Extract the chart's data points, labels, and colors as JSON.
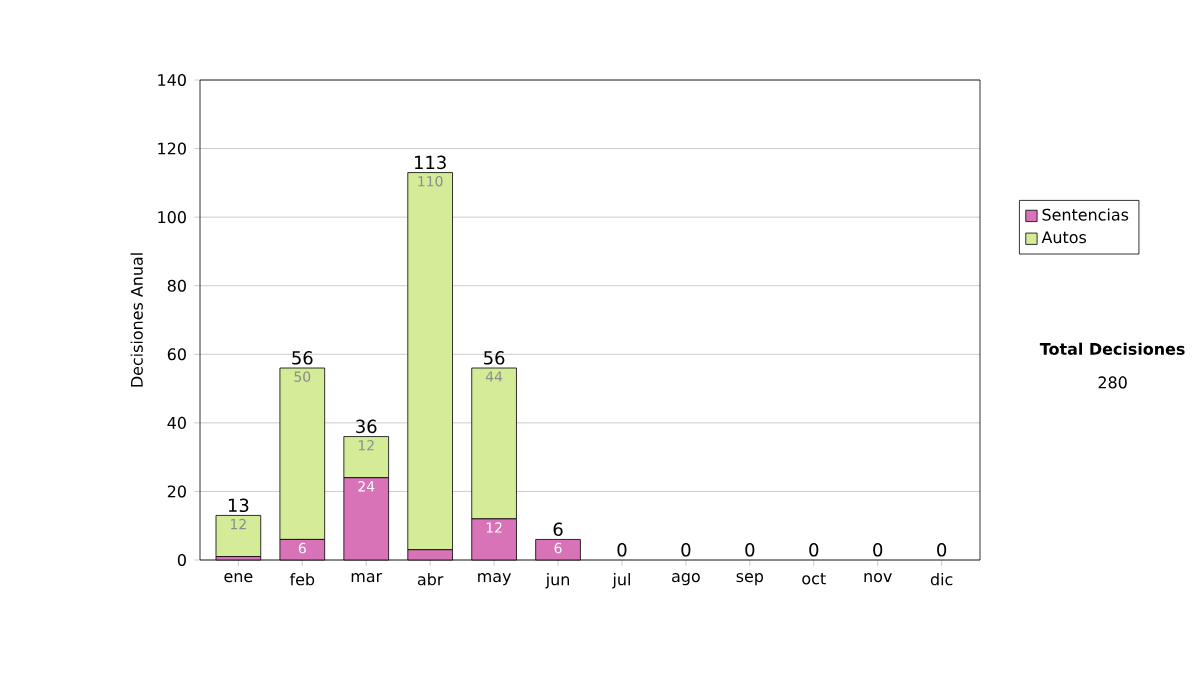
{
  "chart_data": {
    "type": "bar",
    "stacked": true,
    "ylabel": "Decisiones Anual",
    "categories": [
      "ene",
      "feb",
      "mar",
      "abr",
      "may",
      "jun",
      "jul",
      "ago",
      "sep",
      "oct",
      "nov",
      "dic"
    ],
    "series": [
      {
        "name": "Sentencias",
        "color": "#d873b8",
        "values": [
          1,
          6,
          24,
          3,
          12,
          6,
          0,
          0,
          0,
          0,
          0,
          0
        ],
        "value_labels": [
          null,
          "6",
          "24",
          null,
          "12",
          "6",
          null,
          null,
          null,
          null,
          null,
          null
        ]
      },
      {
        "name": "Autos",
        "color": "#d4eb98",
        "values": [
          12,
          50,
          12,
          110,
          44,
          0,
          0,
          0,
          0,
          0,
          0,
          0
        ],
        "value_labels": [
          "12",
          "50",
          "12",
          "110",
          "44",
          null,
          null,
          null,
          null,
          null,
          null,
          null
        ]
      }
    ],
    "totals": [
      "13",
      "56",
      "36",
      "113",
      "56",
      "6",
      "0",
      "0",
      "0",
      "0",
      "0",
      "0"
    ],
    "ylim": [
      0,
      140
    ],
    "yticks": [
      0,
      20,
      40,
      60,
      80,
      100,
      120,
      140
    ],
    "grid": "y",
    "legend": "right",
    "annotations": [
      "**Total Decisiones**",
      "280"
    ]
  }
}
